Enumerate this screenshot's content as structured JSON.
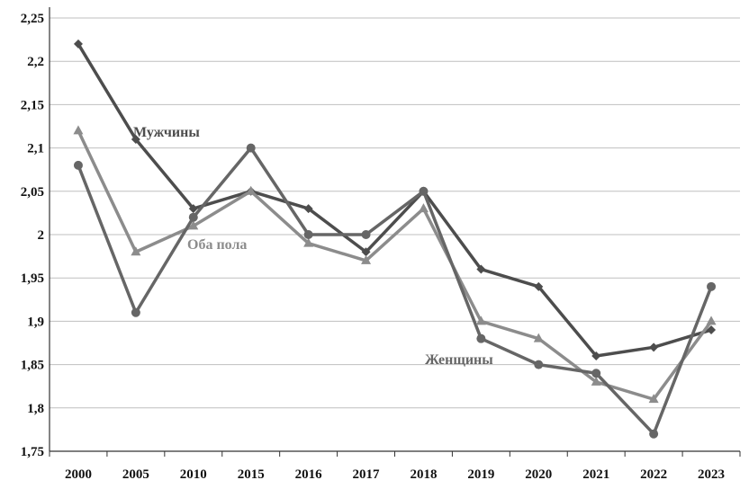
{
  "chart_data": {
    "type": "line",
    "title": "",
    "xlabel": "",
    "ylabel": "",
    "categories": [
      "2000",
      "2005",
      "2010",
      "2015",
      "2016",
      "2017",
      "2018",
      "2019",
      "2020",
      "2021",
      "2022",
      "2023"
    ],
    "ylim": [
      1.75,
      2.25
    ],
    "ytick_values": [
      1.75,
      1.8,
      1.85,
      1.9,
      1.95,
      2.0,
      2.05,
      2.1,
      2.15,
      2.2,
      2.25
    ],
    "ytick_labels": [
      "1,75",
      "1,8",
      "1,85",
      "1,9",
      "1,95",
      "2",
      "2,05",
      "2,1",
      "2,15",
      "2,2",
      "2,25"
    ],
    "grid": true,
    "series": [
      {
        "name": "Мужчины",
        "marker": "diamond",
        "color": "#4d4d4d",
        "values": [
          2.22,
          2.11,
          2.03,
          2.05,
          2.03,
          1.98,
          2.05,
          1.96,
          1.94,
          1.86,
          1.87,
          1.89
        ]
      },
      {
        "name": "Оба пола",
        "marker": "triangle",
        "color": "#8c8c8c",
        "values": [
          2.12,
          1.98,
          2.01,
          2.05,
          1.99,
          1.97,
          2.03,
          1.9,
          1.88,
          1.83,
          1.81,
          1.9
        ]
      },
      {
        "name": "Женщины",
        "marker": "circle",
        "color": "#666666",
        "values": [
          2.08,
          1.91,
          2.02,
          2.1,
          2.0,
          2.0,
          2.05,
          1.88,
          1.85,
          1.84,
          1.77,
          1.94
        ]
      }
    ]
  }
}
